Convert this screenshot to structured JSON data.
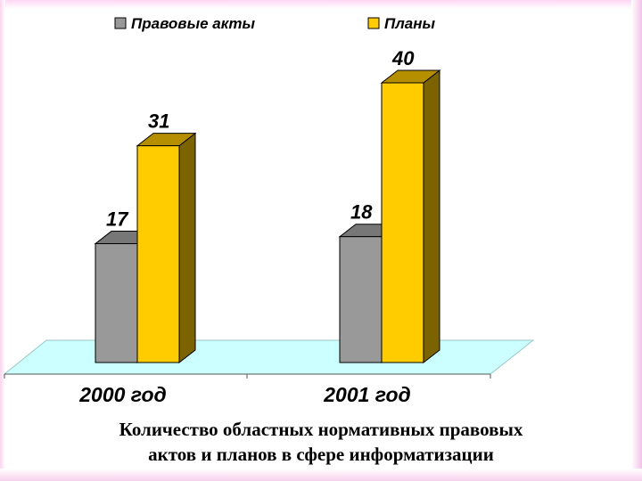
{
  "chart_data": {
    "type": "bar",
    "categories": [
      "2000 год",
      "2001 год"
    ],
    "series": [
      {
        "name": "Правовые акты",
        "values": [
          17,
          18
        ],
        "color": "#999999",
        "top_color": "#777777",
        "side_color": "#5a5a5a"
      },
      {
        "name": "Планы",
        "values": [
          31,
          40
        ],
        "color": "#ffcc00",
        "top_color": "#b58f00",
        "side_color": "#7a6300"
      }
    ],
    "ylim": [
      0,
      40
    ],
    "grid": false,
    "legend_position": "top",
    "floor_color": "#ccffff"
  },
  "caption": {
    "line1": "Количество областных нормативных правовых",
    "line2": "актов и планов в сфере информатизации"
  }
}
